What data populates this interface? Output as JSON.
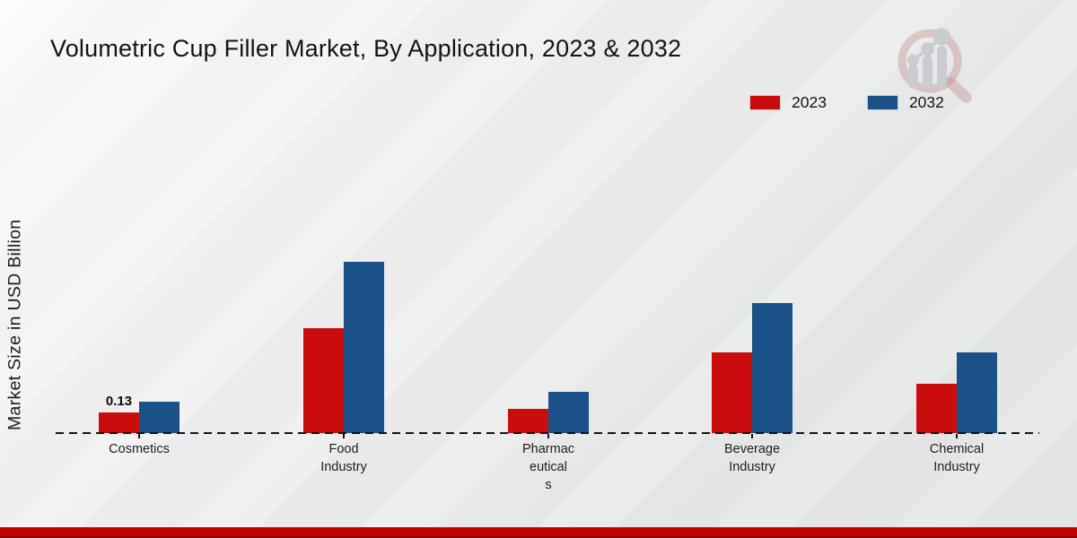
{
  "page": {
    "title": "Volumetric Cup Filler Market, By Application, 2023 & 2032",
    "ylabel": "Market Size in USD Billion"
  },
  "colors": {
    "series_2023": "#c90d0d",
    "series_2032": "#1a5189",
    "footer_bar": "#bd0303",
    "baseline": "#141414",
    "background": "#e8e9e9"
  },
  "legend": {
    "position": "top-right",
    "items": [
      {
        "label": "2023",
        "color": "#c90d0d"
      },
      {
        "label": "2032",
        "color": "#1a5189"
      }
    ]
  },
  "watermark": {
    "icon": "magnifier-bar-chart-logo"
  },
  "chart_data": {
    "type": "bar",
    "title": "Volumetric Cup Filler Market, By Application, 2023 & 2032",
    "xlabel": "",
    "ylabel": "Market Size in USD Billion",
    "categories": [
      "Cosmetics",
      "Food Industry",
      "Pharmaceuticals",
      "Beverage Industry",
      "Chemical Industry"
    ],
    "tick_labels": [
      "Cosmetics",
      "Food\nIndustry",
      "Pharmac\neutical\ns",
      "Beverage\nIndustry",
      "Chemical\nIndustry"
    ],
    "series": [
      {
        "name": "2023",
        "color": "#c90d0d",
        "values": [
          0.13,
          0.66,
          0.15,
          0.51,
          0.31
        ],
        "data_labels": [
          "0.13",
          "",
          "",
          "",
          ""
        ]
      },
      {
        "name": "2032",
        "color": "#1a5189",
        "values": [
          0.2,
          1.08,
          0.26,
          0.82,
          0.51
        ],
        "data_labels": [
          "",
          "",
          "",
          "",
          ""
        ]
      }
    ],
    "ylim": [
      0,
      1.2
    ],
    "grid": false,
    "y_axis_ticks_visible": false,
    "baseline_style": "dashed",
    "legend_position": "top-right"
  }
}
